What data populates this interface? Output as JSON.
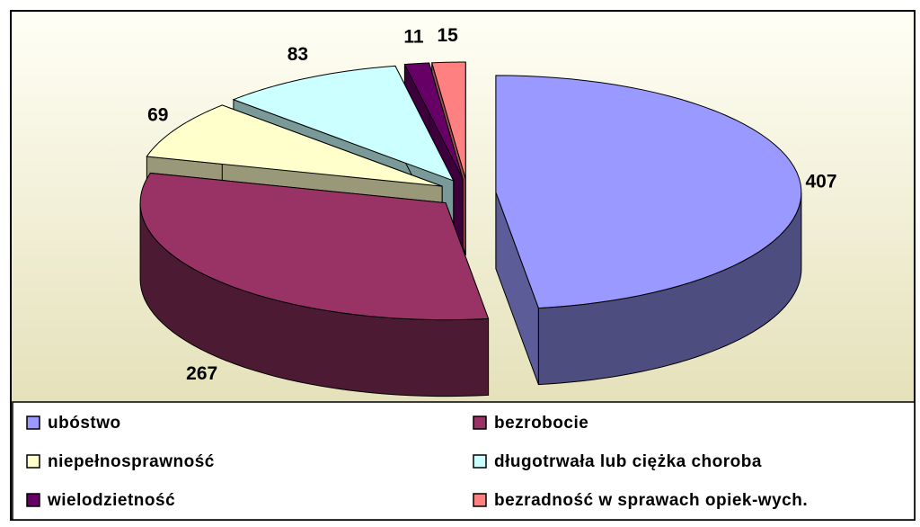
{
  "chart_data": {
    "type": "pie",
    "categories": [
      "ubóstwo",
      "bezrobocie",
      "niepełnosprawność",
      "długotrwała lub ciężka choroba",
      "wielodzietność",
      "bezradność w sprawach opiek-wych."
    ],
    "values": [
      407,
      267,
      69,
      83,
      11,
      15
    ],
    "colors": [
      "#9999ff",
      "#993366",
      "#ffffcc",
      "#ccffff",
      "#660066",
      "#ff8080"
    ]
  }
}
